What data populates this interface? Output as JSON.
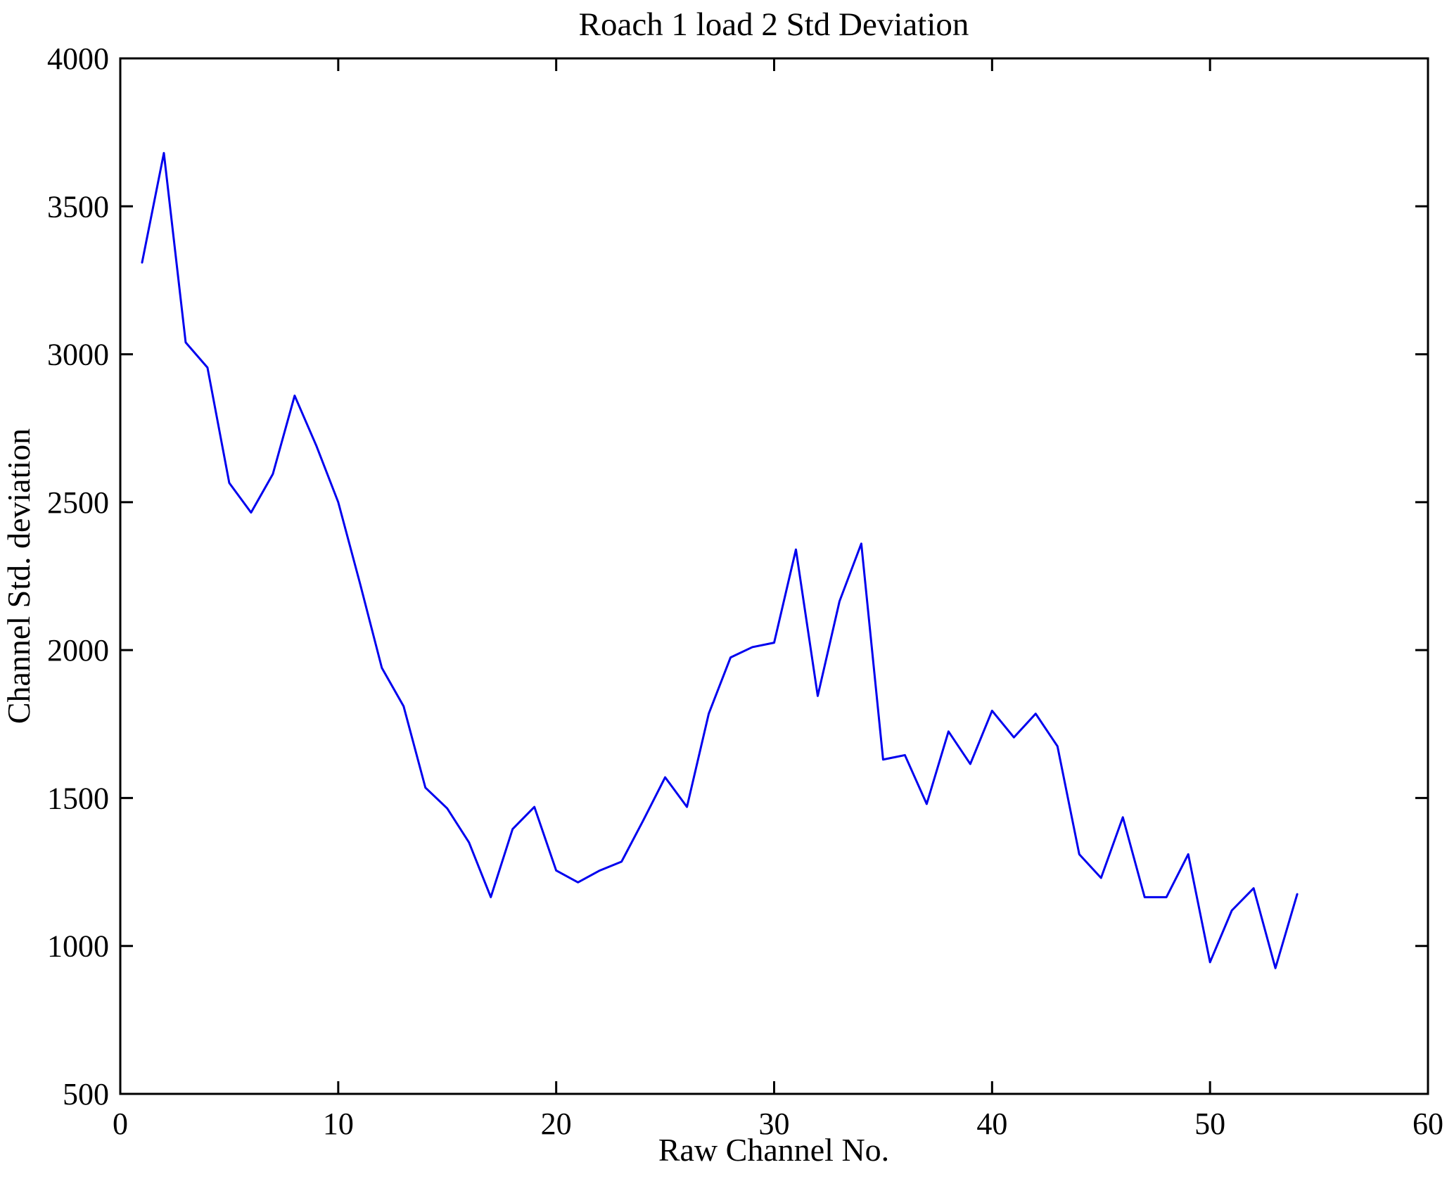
{
  "figure": {
    "title": "Roach 1 load 2 Std Deviation",
    "x_axis_label": "Raw Channel No.",
    "y_axis_label": "Channel Std. deviation"
  },
  "chart_data": {
    "type": "line",
    "title": "Roach 1 load 2 Std Deviation",
    "xlabel": "Raw Channel No.",
    "ylabel": "Channel Std. deviation",
    "x": [
      1,
      2,
      3,
      4,
      5,
      6,
      7,
      8,
      9,
      10,
      11,
      12,
      13,
      14,
      15,
      16,
      17,
      18,
      19,
      20,
      21,
      22,
      23,
      24,
      25,
      26,
      27,
      28,
      29,
      30,
      31,
      32,
      33,
      34,
      35,
      36,
      37,
      38,
      39,
      40,
      41,
      42,
      43,
      44,
      45,
      46,
      47,
      48,
      49,
      50,
      51,
      52,
      53,
      54
    ],
    "y": [
      3310,
      3680,
      3040,
      2955,
      2565,
      2465,
      2595,
      2860,
      2690,
      2500,
      2225,
      1940,
      1810,
      1535,
      1465,
      1350,
      1165,
      1395,
      1470,
      1255,
      1215,
      1255,
      1285,
      1425,
      1570,
      1470,
      1785,
      1975,
      2010,
      2025,
      2340,
      1845,
      2165,
      2360,
      1630,
      1645,
      1480,
      1725,
      1615,
      1795,
      1705,
      1785,
      1675,
      1310,
      1230,
      1435,
      1165,
      1165,
      1310,
      945,
      1120,
      1195,
      925,
      1175
    ],
    "xlim": [
      0,
      60
    ],
    "ylim": [
      500,
      4000
    ],
    "xticks": [
      0,
      10,
      20,
      30,
      40,
      50,
      60
    ],
    "yticks": [
      500,
      1000,
      1500,
      2000,
      2500,
      3000,
      3500,
      4000
    ],
    "line_color": "#0000EE",
    "axis_color": "#000000",
    "grid": false,
    "legend": null
  }
}
